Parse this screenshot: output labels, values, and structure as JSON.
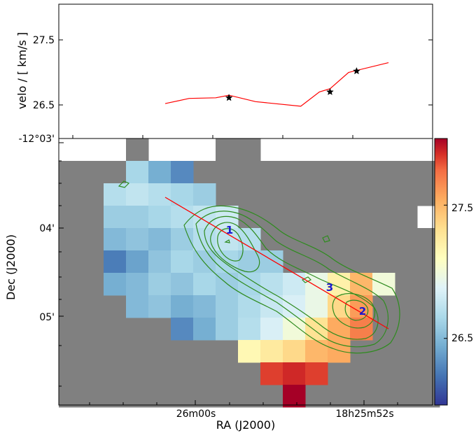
{
  "chart_data": [
    {
      "type": "line",
      "ylabel": "velo / [ km/s ]",
      "yticks": [
        "27.5",
        "26.5"
      ],
      "ytick_values": [
        27.5,
        26.5
      ],
      "ylim": [
        26.0,
        28.0
      ],
      "series": [
        {
          "color": "#ff0000",
          "x": [
            0.0,
            0.09,
            0.19,
            0.24,
            0.34,
            0.51,
            0.58,
            0.62,
            0.69,
            0.84
          ],
          "values": [
            26.52,
            26.6,
            26.61,
            26.65,
            26.55,
            26.48,
            26.7,
            26.75,
            27.0,
            27.15
          ]
        }
      ],
      "markers": [
        {
          "x": 0.24,
          "value": 26.61
        },
        {
          "x": 0.62,
          "value": 26.7
        },
        {
          "x": 0.72,
          "value": 27.02
        }
      ]
    },
    {
      "type": "heatmap",
      "xlabel": "RA (J2000)",
      "ylabel": "Dec (J2000)",
      "xticks": [
        "26m00s",
        "18h25m52s"
      ],
      "yticks": [
        "-12°03'",
        "04'",
        "05'"
      ],
      "colorbar": {
        "ticks": [
          "27.5",
          "26.5"
        ],
        "tick_values": [
          27.5,
          26.5
        ],
        "range": [
          26.0,
          28.0
        ],
        "colormap": "RdYlBu_r"
      },
      "masked_color": "#808080",
      "contour_color": "#2e8b1e",
      "cut_line_color": "#ff0000",
      "labels": [
        "1",
        "2",
        "3"
      ],
      "grid_columns": 17,
      "grid_rows": 12,
      "cells": [
        [
          3,
          1,
          26.65
        ],
        [
          4,
          1,
          26.45
        ],
        [
          5,
          1,
          26.3
        ],
        [
          2,
          2,
          26.7
        ],
        [
          3,
          2,
          26.75
        ],
        [
          4,
          2,
          26.7
        ],
        [
          5,
          2,
          26.65
        ],
        [
          6,
          2,
          26.6
        ],
        [
          2,
          3,
          26.6
        ],
        [
          3,
          3,
          26.6
        ],
        [
          4,
          3,
          26.65
        ],
        [
          5,
          3,
          26.7
        ],
        [
          6,
          3,
          26.75
        ],
        [
          7,
          3,
          26.8
        ],
        [
          2,
          4,
          26.5
        ],
        [
          3,
          4,
          26.55
        ],
        [
          4,
          4,
          26.5
        ],
        [
          5,
          4,
          26.6
        ],
        [
          6,
          4,
          26.7
        ],
        [
          7,
          4,
          26.75
        ],
        [
          8,
          4,
          26.7
        ],
        [
          2,
          5,
          26.25
        ],
        [
          3,
          5,
          26.4
        ],
        [
          4,
          5,
          26.55
        ],
        [
          5,
          5,
          26.65
        ],
        [
          6,
          5,
          26.6
        ],
        [
          7,
          5,
          26.65
        ],
        [
          8,
          5,
          26.6
        ],
        [
          9,
          5,
          26.6
        ],
        [
          2,
          6,
          26.45
        ],
        [
          3,
          6,
          26.5
        ],
        [
          4,
          6,
          26.6
        ],
        [
          5,
          6,
          26.55
        ],
        [
          6,
          6,
          26.65
        ],
        [
          7,
          6,
          26.6
        ],
        [
          8,
          6,
          26.65
        ],
        [
          9,
          6,
          26.72
        ],
        [
          10,
          6,
          26.8
        ],
        [
          11,
          6,
          26.95
        ],
        [
          12,
          6,
          27.2
        ],
        [
          13,
          6,
          27.5
        ],
        [
          14,
          6,
          27.0
        ],
        [
          3,
          7,
          26.5
        ],
        [
          4,
          7,
          26.55
        ],
        [
          5,
          7,
          26.45
        ],
        [
          6,
          7,
          26.5
        ],
        [
          7,
          7,
          26.6
        ],
        [
          8,
          7,
          26.68
        ],
        [
          9,
          7,
          26.78
        ],
        [
          10,
          7,
          26.85
        ],
        [
          11,
          7,
          26.95
        ],
        [
          12,
          7,
          27.35
        ],
        [
          13,
          7,
          27.6
        ],
        [
          5,
          8,
          26.3
        ],
        [
          6,
          8,
          26.45
        ],
        [
          7,
          8,
          26.6
        ],
        [
          8,
          8,
          26.7
        ],
        [
          9,
          8,
          26.85
        ],
        [
          10,
          8,
          27.0
        ],
        [
          11,
          8,
          27.3
        ],
        [
          12,
          8,
          27.55
        ],
        [
          13,
          8,
          27.7
        ],
        [
          8,
          9,
          27.15
        ],
        [
          9,
          9,
          27.25
        ],
        [
          10,
          9,
          27.35
        ],
        [
          11,
          9,
          27.5
        ],
        [
          12,
          9,
          27.55
        ],
        [
          9,
          10,
          27.85
        ],
        [
          10,
          10,
          27.9
        ],
        [
          11,
          10,
          27.85
        ],
        [
          10,
          11,
          28.0
        ]
      ],
      "masked": [
        [
          3,
          0
        ],
        [
          7,
          0
        ],
        [
          8,
          0
        ],
        [
          0,
          1
        ],
        [
          1,
          1
        ],
        [
          2,
          1
        ],
        [
          6,
          1
        ],
        [
          7,
          1
        ],
        [
          8,
          1
        ],
        [
          9,
          1
        ],
        [
          10,
          1
        ],
        [
          11,
          1
        ],
        [
          12,
          1
        ],
        [
          13,
          1
        ],
        [
          14,
          1
        ],
        [
          15,
          1
        ],
        [
          16,
          1
        ],
        [
          0,
          2
        ],
        [
          1,
          2
        ],
        [
          7,
          2
        ],
        [
          8,
          2
        ],
        [
          9,
          2
        ],
        [
          10,
          2
        ],
        [
          11,
          2
        ],
        [
          12,
          2
        ],
        [
          13,
          2
        ],
        [
          14,
          2
        ],
        [
          15,
          2
        ],
        [
          16,
          2
        ],
        [
          0,
          3
        ],
        [
          1,
          3
        ],
        [
          8,
          3
        ],
        [
          9,
          3
        ],
        [
          10,
          3
        ],
        [
          11,
          3
        ],
        [
          12,
          3
        ],
        [
          13,
          3
        ],
        [
          14,
          3
        ],
        [
          15,
          3
        ],
        [
          0,
          4
        ],
        [
          1,
          4
        ],
        [
          9,
          4
        ],
        [
          10,
          4
        ],
        [
          11,
          4
        ],
        [
          12,
          4
        ],
        [
          13,
          4
        ],
        [
          14,
          4
        ],
        [
          15,
          4
        ],
        [
          16,
          4
        ],
        [
          0,
          5
        ],
        [
          1,
          5
        ],
        [
          10,
          5
        ],
        [
          11,
          5
        ],
        [
          12,
          5
        ],
        [
          13,
          5
        ],
        [
          14,
          5
        ],
        [
          15,
          5
        ],
        [
          16,
          5
        ],
        [
          0,
          6
        ],
        [
          1,
          6
        ],
        [
          15,
          6
        ],
        [
          16,
          6
        ],
        [
          0,
          7
        ],
        [
          1,
          7
        ],
        [
          2,
          7
        ],
        [
          14,
          7
        ],
        [
          15,
          7
        ],
        [
          16,
          7
        ],
        [
          0,
          8
        ],
        [
          1,
          8
        ],
        [
          2,
          8
        ],
        [
          3,
          8
        ],
        [
          4,
          8
        ],
        [
          14,
          8
        ],
        [
          15,
          8
        ],
        [
          16,
          8
        ],
        [
          0,
          9
        ],
        [
          1,
          9
        ],
        [
          2,
          9
        ],
        [
          3,
          9
        ],
        [
          4,
          9
        ],
        [
          5,
          9
        ],
        [
          6,
          9
        ],
        [
          7,
          9
        ],
        [
          13,
          9
        ],
        [
          14,
          9
        ],
        [
          15,
          9
        ],
        [
          16,
          9
        ],
        [
          0,
          10
        ],
        [
          1,
          10
        ],
        [
          2,
          10
        ],
        [
          3,
          10
        ],
        [
          4,
          10
        ],
        [
          5,
          10
        ],
        [
          6,
          10
        ],
        [
          7,
          10
        ],
        [
          8,
          10
        ],
        [
          12,
          10
        ],
        [
          13,
          10
        ],
        [
          14,
          10
        ],
        [
          15,
          10
        ],
        [
          16,
          10
        ],
        [
          0,
          11
        ],
        [
          1,
          11
        ],
        [
          2,
          11
        ],
        [
          3,
          11
        ],
        [
          4,
          11
        ],
        [
          5,
          11
        ],
        [
          6,
          11
        ],
        [
          7,
          11
        ],
        [
          8,
          11
        ],
        [
          9,
          11
        ],
        [
          11,
          11
        ],
        [
          12,
          11
        ],
        [
          13,
          11
        ],
        [
          14,
          11
        ],
        [
          15,
          11
        ],
        [
          16,
          11
        ]
      ]
    }
  ]
}
